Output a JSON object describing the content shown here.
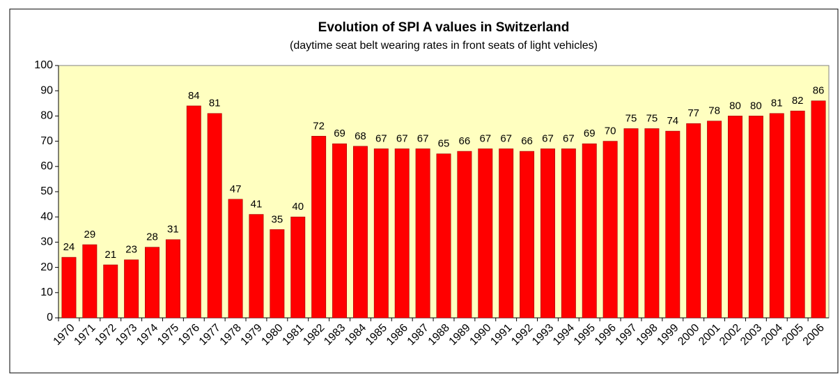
{
  "chart_data": {
    "type": "bar",
    "title": "Evolution of SPI A values in Switzerland",
    "subtitle": "(daytime seat belt wearing rates in front seats of light vehicles)",
    "categories": [
      "1970",
      "1971",
      "1972",
      "1973",
      "1974",
      "1975",
      "1976",
      "1977",
      "1978",
      "1979",
      "1980",
      "1981",
      "1982",
      "1983",
      "1984",
      "1985",
      "1986",
      "1987",
      "1988",
      "1989",
      "1990",
      "1991",
      "1992",
      "1993",
      "1994",
      "1995",
      "1996",
      "1997",
      "1998",
      "1999",
      "2000",
      "2001",
      "2002",
      "2003",
      "2004",
      "2005",
      "2006"
    ],
    "values": [
      24,
      29,
      21,
      23,
      28,
      31,
      84,
      81,
      47,
      41,
      35,
      40,
      72,
      69,
      68,
      67,
      67,
      67,
      65,
      66,
      67,
      67,
      66,
      67,
      67,
      69,
      70,
      75,
      75,
      74,
      77,
      78,
      80,
      80,
      81,
      82,
      86
    ],
    "color": "#ff0000",
    "ylim": [
      0,
      100
    ],
    "yticks": [
      0,
      10,
      20,
      30,
      40,
      50,
      60,
      70,
      80,
      90,
      100
    ],
    "grid": false
  }
}
